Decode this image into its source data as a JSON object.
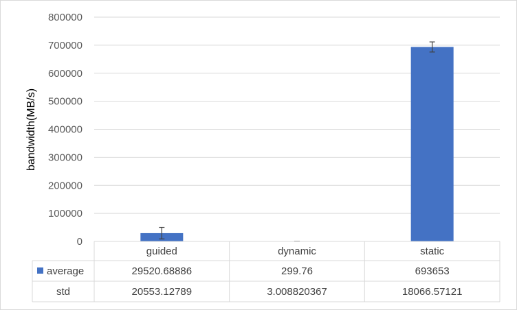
{
  "chart_data": {
    "type": "bar",
    "ylabel": "bandwidth(MB/s)",
    "xlabel": "",
    "ylim": [
      0,
      800000
    ],
    "yticks": [
      0,
      100000,
      200000,
      300000,
      400000,
      500000,
      600000,
      700000,
      800000
    ],
    "yticks_text": [
      "0",
      "100000",
      "200000",
      "300000",
      "400000",
      "500000",
      "600000",
      "700000",
      "800000"
    ],
    "grid": true,
    "legend": "data-table",
    "categories": [
      "guided",
      "dynamic",
      "static"
    ],
    "series": [
      {
        "name": "average",
        "values": [
          29520.68886,
          299.76,
          693653
        ],
        "color": "#4472c4"
      }
    ],
    "error_bars": [
      20553.12789,
      3.008820367,
      18066.57121
    ],
    "data_table": {
      "rows": [
        {
          "label": "average",
          "show_legend_key": true,
          "cells": [
            "29520.68886",
            "299.76",
            "693653"
          ]
        },
        {
          "label": "std",
          "show_legend_key": false,
          "cells": [
            "20553.12789",
            "3.008820367",
            "18066.57121"
          ]
        }
      ]
    }
  }
}
